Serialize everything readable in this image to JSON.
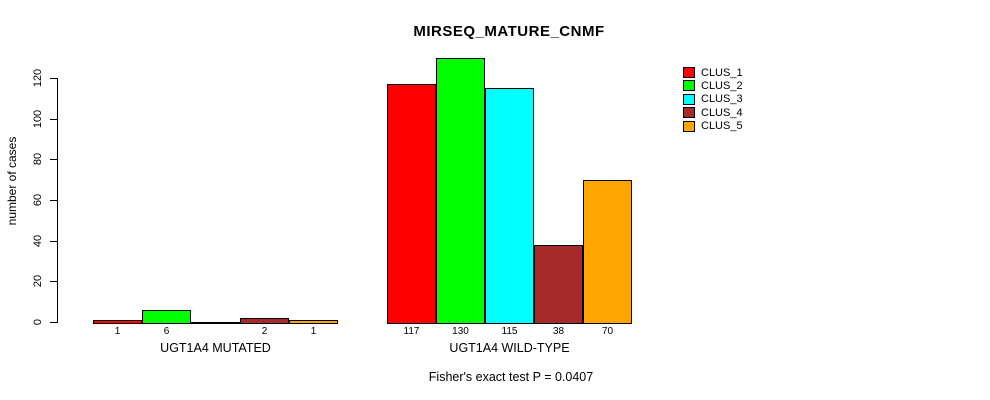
{
  "chart_data": {
    "type": "bar",
    "title": "MIRSEQ_MATURE_CNMF",
    "ylabel": "number of cases",
    "subtitle": "Fisher's exact test P = 0.0407",
    "ylim": [
      0,
      120
    ],
    "yticks": [
      0,
      20,
      40,
      60,
      80,
      100,
      120
    ],
    "grid": false,
    "legend_position": "right",
    "bar_value_labels_shown": true,
    "categories": [
      "UGT1A4 MUTATED",
      "UGT1A4 WILD-TYPE"
    ],
    "series": [
      {
        "name": "CLUS_1",
        "color": "#FF0000",
        "values": [
          1,
          117
        ]
      },
      {
        "name": "CLUS_2",
        "color": "#00FF00",
        "values": [
          6,
          130
        ]
      },
      {
        "name": "CLUS_3",
        "color": "#00FFFF",
        "values": [
          0,
          115
        ]
      },
      {
        "name": "CLUS_4",
        "color": "#A52A2A",
        "values": [
          2,
          38
        ]
      },
      {
        "name": "CLUS_5",
        "color": "#FFA500",
        "values": [
          1,
          70
        ]
      }
    ]
  }
}
